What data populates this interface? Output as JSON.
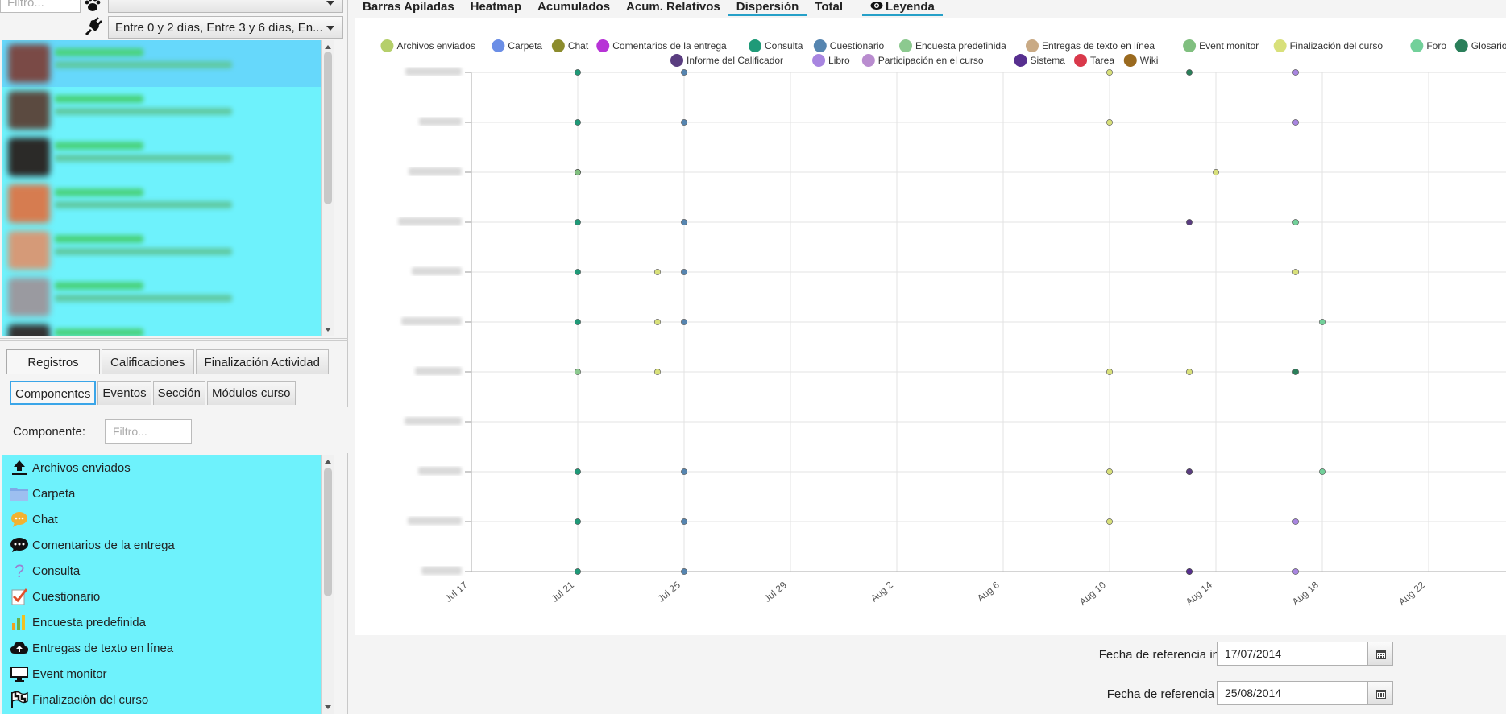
{
  "sidebar": {
    "top_filter_placeholder": "Filtro...",
    "date_filter": "Entre 0 y 2 días, Entre 3 y 6 días, En...",
    "users": [
      {
        "avatar_color": "#7a4a46"
      },
      {
        "avatar_color": "#5b4a40"
      },
      {
        "avatar_color": "#2b2a28"
      },
      {
        "avatar_color": "#d67c50"
      },
      {
        "avatar_color": "#d59a78"
      },
      {
        "avatar_color": "#9a9aa0"
      },
      {
        "avatar_color": "#333333"
      }
    ],
    "tabs_main": [
      "Registros",
      "Calificaciones",
      "Finalización Actividad"
    ],
    "tabs_sub": [
      "Componentes",
      "Eventos",
      "Sección",
      "Módulos curso"
    ],
    "component_label": "Componente:",
    "component_filter_placeholder": "Filtro...",
    "components": [
      {
        "label": "Archivos enviados",
        "icon": "upload-icon"
      },
      {
        "label": "Carpeta",
        "icon": "folder-icon"
      },
      {
        "label": "Chat",
        "icon": "chat-bubble-icon"
      },
      {
        "label": "Comentarios de la entrega",
        "icon": "comment-icon"
      },
      {
        "label": "Consulta",
        "icon": "question-icon"
      },
      {
        "label": "Cuestionario",
        "icon": "quiz-checklist-icon"
      },
      {
        "label": "Encuesta predefinida",
        "icon": "bar-chart-icon"
      },
      {
        "label": "Entregas de texto en línea",
        "icon": "cloud-upload-icon"
      },
      {
        "label": "Event monitor",
        "icon": "monitor-icon"
      },
      {
        "label": "Finalización del curso",
        "icon": "checkered-flag-icon"
      }
    ]
  },
  "chart_tabs": [
    "Barras Apiladas",
    "Heatmap",
    "Acumulados",
    "Acum. Relativos",
    "Dispersión",
    "Total",
    "Leyenda"
  ],
  "active_chart_tab": "Dispersión",
  "chart_data": {
    "type": "scatter",
    "x_ticks": [
      "Jul 17",
      "Jul 21",
      "Jul 25",
      "Jul 29",
      "Aug 2",
      "Aug 6",
      "Aug 10",
      "Aug 14",
      "Aug 18",
      "Aug 22"
    ],
    "x_range": [
      "2014-07-17",
      "2014-08-25"
    ],
    "y_categories_count": 11,
    "grid": true,
    "legend_position": "top",
    "series": [
      {
        "name": "Archivos enviados",
        "color": "#b5cf6b",
        "points": []
      },
      {
        "name": "Carpeta",
        "color": "#6b8ee6",
        "points": []
      },
      {
        "name": "Chat",
        "color": "#8c8c2d",
        "points": []
      },
      {
        "name": "Comentarios de la entrega",
        "color": "#b733d6",
        "points": []
      },
      {
        "name": "Consulta",
        "color": "#1f9a78",
        "points": [
          [
            "2014-07-21",
            0
          ],
          [
            "2014-07-21",
            1
          ],
          [
            "2014-07-21",
            2
          ],
          [
            "2014-07-21",
            5
          ],
          [
            "2014-07-21",
            6
          ],
          [
            "2014-07-21",
            7
          ],
          [
            "2014-07-21",
            8
          ],
          [
            "2014-07-21",
            9
          ],
          [
            "2014-07-21",
            10
          ]
        ]
      },
      {
        "name": "Cuestionario",
        "color": "#5685b0",
        "points": [
          [
            "2014-07-25",
            0
          ],
          [
            "2014-07-25",
            1
          ],
          [
            "2014-07-25",
            2
          ],
          [
            "2014-07-25",
            5
          ],
          [
            "2014-07-25",
            6
          ],
          [
            "2014-07-25",
            7
          ],
          [
            "2014-07-25",
            9
          ],
          [
            "2014-07-25",
            10
          ]
        ]
      },
      {
        "name": "Encuesta predefinida",
        "color": "#8cc98f",
        "points": [
          [
            "2014-07-21",
            4
          ],
          [
            "2014-07-21",
            8
          ]
        ]
      },
      {
        "name": "Entregas de texto en línea",
        "color": "#c9aa85",
        "points": []
      },
      {
        "name": "Event monitor",
        "color": "#80bf7f",
        "points": [
          [
            "2014-07-21",
            8
          ]
        ]
      },
      {
        "name": "Finalización del curso",
        "color": "#d8e07a",
        "points": [
          [
            "2014-07-24",
            4
          ],
          [
            "2014-07-24",
            5
          ],
          [
            "2014-07-24",
            6
          ],
          [
            "2014-08-10",
            1
          ],
          [
            "2014-08-10",
            2
          ],
          [
            "2014-08-10",
            4
          ],
          [
            "2014-08-10",
            9
          ],
          [
            "2014-08-10",
            10
          ],
          [
            "2014-08-13",
            2
          ],
          [
            "2014-08-13",
            4
          ],
          [
            "2014-08-14",
            8
          ],
          [
            "2014-08-17",
            6
          ]
        ]
      },
      {
        "name": "Foro",
        "color": "#72d09a",
        "points": [
          [
            "2014-08-18",
            2
          ],
          [
            "2014-08-18",
            5
          ],
          [
            "2014-08-17",
            7
          ]
        ]
      },
      {
        "name": "Glosario",
        "color": "#2a7f5a",
        "points": [
          [
            "2014-08-17",
            4
          ],
          [
            "2014-08-13",
            0
          ],
          [
            "2014-08-13",
            10
          ]
        ]
      },
      {
        "name": "Informe del Calificador",
        "color": "#5a3d80",
        "points": [
          [
            "2014-08-13",
            0
          ],
          [
            "2014-08-13",
            2
          ],
          [
            "2014-08-13",
            7
          ]
        ]
      },
      {
        "name": "Libro",
        "color": "#a885e0",
        "points": [
          [
            "2014-08-17",
            0
          ],
          [
            "2014-08-17",
            1
          ],
          [
            "2014-08-17",
            9
          ],
          [
            "2014-08-17",
            10
          ]
        ]
      },
      {
        "name": "Participación en el curso",
        "color": "#b98ccf",
        "points": []
      },
      {
        "name": "Sistema",
        "color": "#572f8f",
        "points": [
          [
            "2014-08-13",
            0
          ]
        ]
      },
      {
        "name": "Tarea",
        "color": "#d9394b",
        "points": []
      },
      {
        "name": "Wiki",
        "color": "#9a6a1f",
        "points": []
      }
    ]
  },
  "bottom": {
    "start_label": "Fecha de referencia inicial:",
    "start_value": "17/07/2014",
    "end_label": "Fecha de referencia final:",
    "end_value": "25/08/2014"
  }
}
